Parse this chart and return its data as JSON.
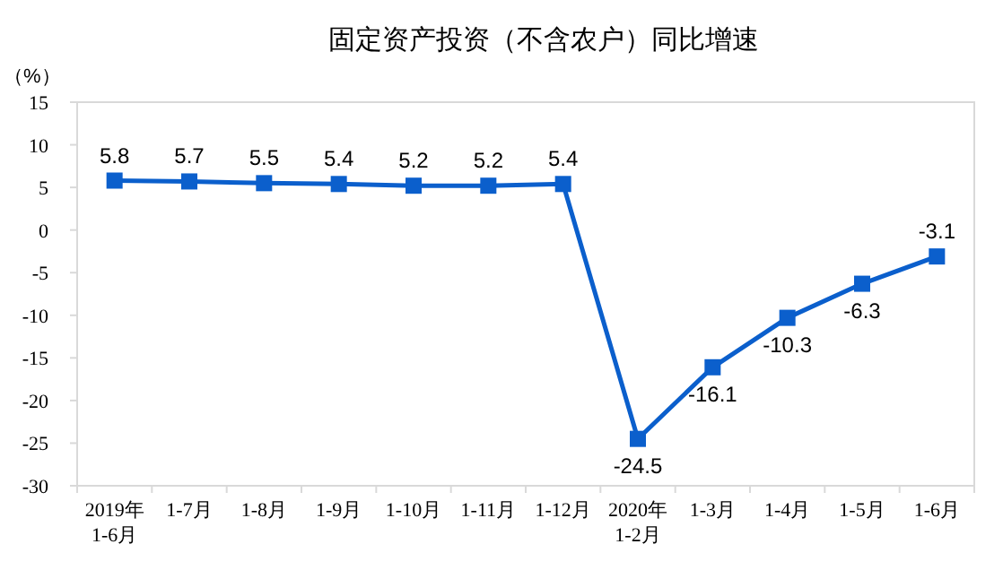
{
  "chart_data": {
    "type": "line",
    "title": "固定资产投资（不含农户）同比增速",
    "ylabel": "（%）",
    "categories": [
      "2019年\n1-6月",
      "1-7月",
      "1-8月",
      "1-9月",
      "1-10月",
      "1-11月",
      "1-12月",
      "2020年\n1-2月",
      "1-3月",
      "1-4月",
      "1-5月",
      "1-6月"
    ],
    "series": [
      {
        "color": "#0b5fcc",
        "values": [
          5.8,
          5.7,
          5.5,
          5.4,
          5.2,
          5.2,
          5.4,
          -24.5,
          -16.1,
          -10.3,
          -6.3,
          -3.1
        ]
      }
    ],
    "ylim": [
      -30,
      15
    ],
    "yticks": [
      -30,
      -25,
      -20,
      -15,
      -10,
      -5,
      0,
      5,
      10,
      15
    ],
    "grid": false,
    "marker": "square",
    "line_style": "solid",
    "data_labels": true
  }
}
